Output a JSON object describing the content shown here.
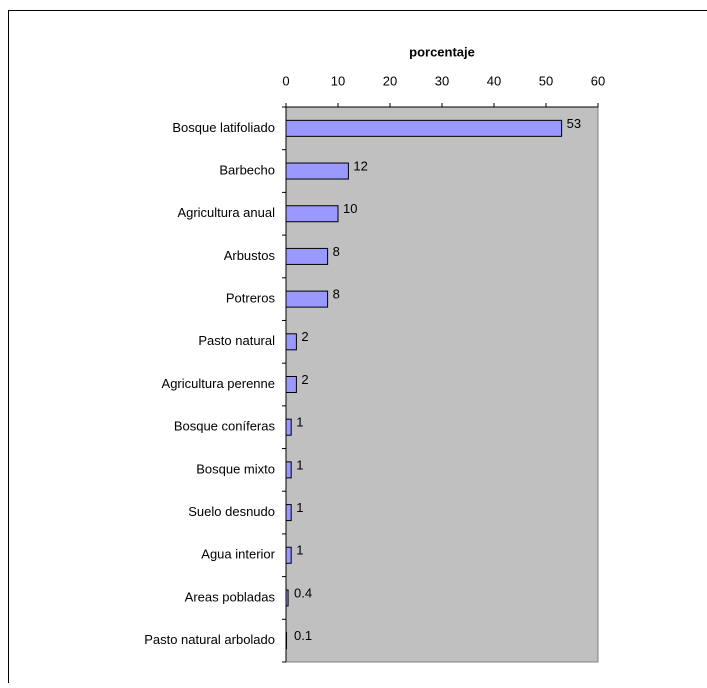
{
  "chart_data": {
    "type": "bar",
    "orientation": "horizontal",
    "x_label": "porcentaje",
    "categories": [
      "Bosque latifoliado",
      "Barbecho",
      "Agricultura anual",
      "Arbustos",
      "Potreros",
      "Pasto natural",
      "Agricultura perenne",
      "Bosque coníferas",
      "Bosque mixto",
      "Suelo desnudo",
      "Agua interior",
      "Areas pobladas",
      "Pasto natural arbolado"
    ],
    "values": [
      53,
      12,
      10,
      8,
      8,
      2,
      2,
      1,
      1,
      1,
      1,
      0.4,
      0.1
    ],
    "color": "#9999ff",
    "xlim": [
      0,
      60
    ],
    "xticks": [
      0,
      10,
      20,
      30,
      40,
      50,
      60
    ]
  }
}
